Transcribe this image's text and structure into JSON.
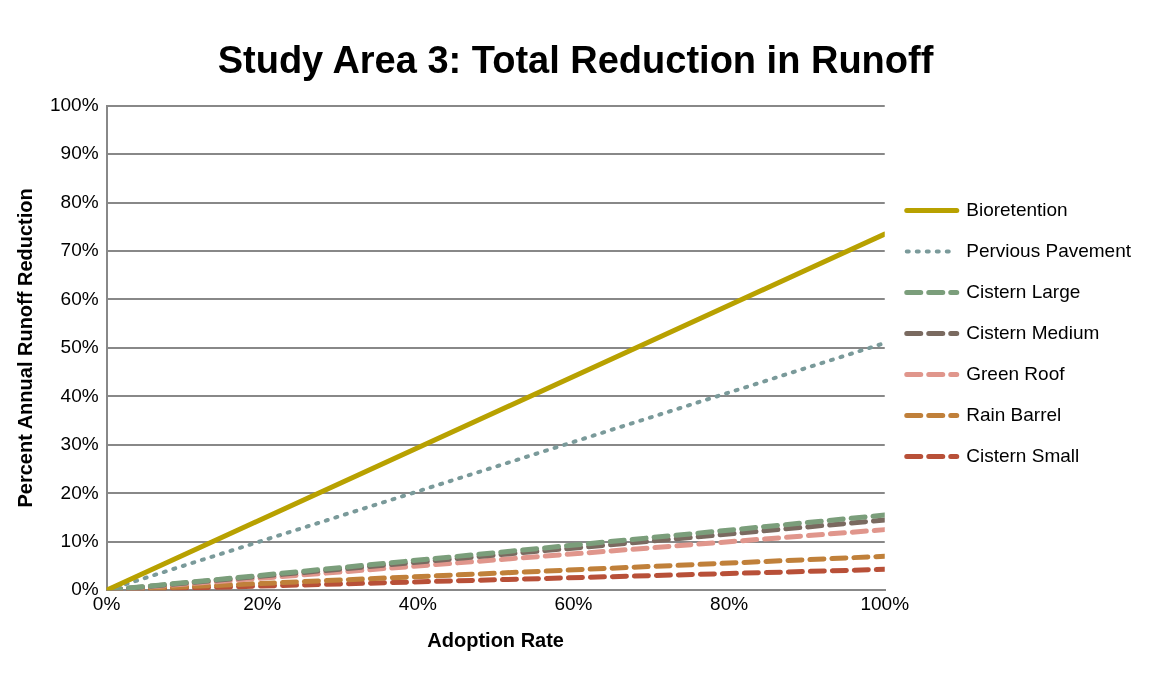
{
  "chart_data": {
    "type": "line",
    "title": "Study Area 3: Total Reduction in Runoff",
    "xlabel": "Adoption Rate",
    "ylabel": "Percent Annual Runoff Reduction",
    "x": [
      0,
      100
    ],
    "series": [
      {
        "name": "Bioretention",
        "color": "#b8a100",
        "line_style": "solid",
        "values": [
          0,
          73.5
        ]
      },
      {
        "name": "Pervious Pavement",
        "color": "#7a9a9a",
        "line_style": "dotted",
        "values": [
          0,
          51
        ]
      },
      {
        "name": "Cistern Large",
        "color": "#7b9e7b",
        "line_style": "dashed",
        "values": [
          0,
          15.5
        ]
      },
      {
        "name": "Cistern Medium",
        "color": "#7a6a60",
        "line_style": "dashed",
        "values": [
          0,
          14.5
        ]
      },
      {
        "name": "Green Roof",
        "color": "#e0968c",
        "line_style": "dashed",
        "values": [
          0,
          12.5
        ]
      },
      {
        "name": "Rain Barrel",
        "color": "#c0803a",
        "line_style": "dashed",
        "values": [
          0,
          7
        ]
      },
      {
        "name": "Cistern Small",
        "color": "#b85038",
        "line_style": "dashed",
        "values": [
          0,
          4.3
        ]
      }
    ],
    "xlim": [
      0,
      100
    ],
    "xticks": [
      {
        "value": 0,
        "label": "0%"
      },
      {
        "value": 20,
        "label": "20%"
      },
      {
        "value": 40,
        "label": "40%"
      },
      {
        "value": 60,
        "label": "60%"
      },
      {
        "value": 80,
        "label": "80%"
      },
      {
        "value": 100,
        "label": "100%"
      }
    ],
    "ylim": [
      0,
      100
    ],
    "yticks": [
      {
        "value": 0,
        "label": "0%"
      },
      {
        "value": 10,
        "label": "10%"
      },
      {
        "value": 20,
        "label": "20%"
      },
      {
        "value": 30,
        "label": "30%"
      },
      {
        "value": 40,
        "label": "40%"
      },
      {
        "value": 50,
        "label": "50%"
      },
      {
        "value": 60,
        "label": "60%"
      },
      {
        "value": 70,
        "label": "70%"
      },
      {
        "value": 80,
        "label": "80%"
      },
      {
        "value": 90,
        "label": "90%"
      },
      {
        "value": 100,
        "label": "100%"
      }
    ],
    "grid": "y",
    "legend": "right",
    "marker": "none"
  }
}
